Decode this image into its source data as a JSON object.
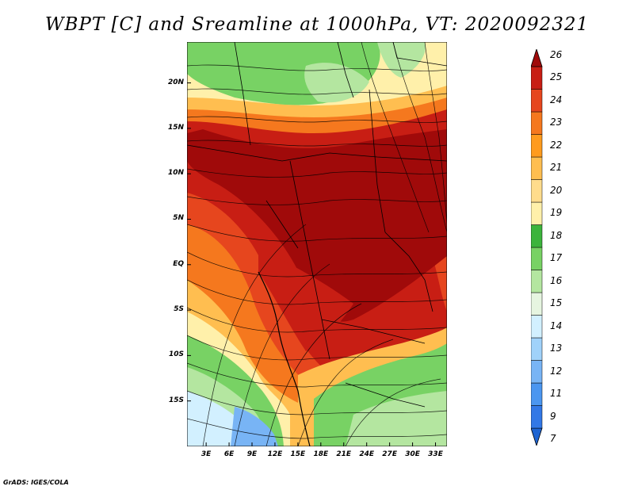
{
  "title": "WBPT [C] and Sreamline at 1000hPa, VT: 2020092321",
  "map": {
    "lat_labels": [
      "20N",
      "15N",
      "10N",
      "5N",
      "EQ",
      "5S",
      "10S",
      "15S"
    ],
    "lon_labels": [
      "3E",
      "6E",
      "9E",
      "12E",
      "15E",
      "18E",
      "21E",
      "24E",
      "27E",
      "30E",
      "33E"
    ],
    "lat_values": [
      20,
      15,
      10,
      5,
      0,
      -5,
      -10,
      -15
    ],
    "lon_values": [
      3,
      6,
      9,
      12,
      15,
      18,
      21,
      24,
      27,
      30,
      33
    ],
    "lon_range": [
      0.5,
      34.5
    ],
    "lat_range": [
      -20,
      24.5
    ]
  },
  "colorbar": {
    "levels": [
      "7",
      "9",
      "11",
      "12",
      "13",
      "14",
      "15",
      "16",
      "17",
      "18",
      "19",
      "20",
      "21",
      "22",
      "23",
      "24",
      "25",
      "26"
    ],
    "colors": [
      "#1e64d2",
      "#3278e6",
      "#4b96f0",
      "#78b4f5",
      "#a0d2fa",
      "#d2f0ff",
      "#e6f5e0",
      "#b4e6a0",
      "#78d264",
      "#3cb43c",
      "#fff0aa",
      "#ffdc8c",
      "#ffbe50",
      "#ff9b1e",
      "#f5781e",
      "#e6461e",
      "#c81e14",
      "#a00a0a"
    ]
  },
  "footer": "GrADS: IGES/COLA"
}
